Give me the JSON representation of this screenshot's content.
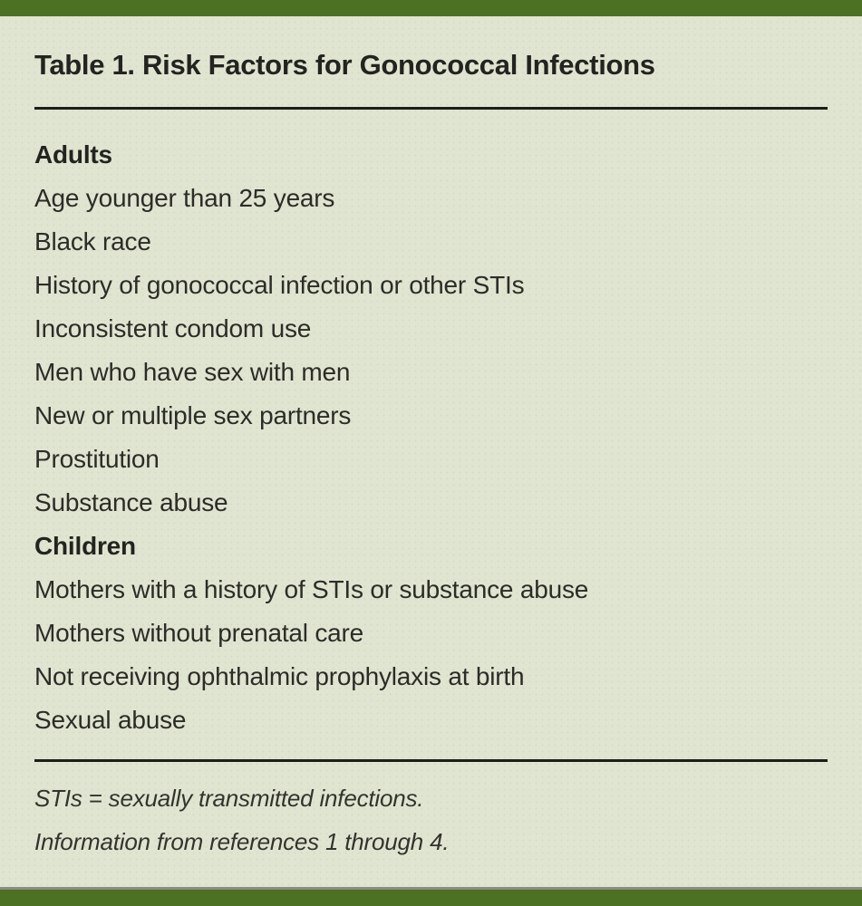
{
  "page": {
    "background_color": "#e0e5d2",
    "accent_color": "#4d7122",
    "shadow_line_color": "#8c8c85",
    "text_color": "#2c2c27"
  },
  "table": {
    "title": "Table 1. Risk Factors for Gonococcal Infections",
    "sections": [
      {
        "header": "Adults",
        "items": [
          "Age younger than 25 years",
          "Black race",
          "History of gonococcal infection or other STIs",
          "Inconsistent condom use",
          "Men who have sex with men",
          "New or multiple sex partners",
          "Prostitution",
          "Substance abuse"
        ]
      },
      {
        "header": "Children",
        "items": [
          "Mothers with a history of STIs or substance abuse",
          "Mothers without prenatal care",
          "Not receiving ophthalmic prophylaxis at birth",
          "Sexual abuse"
        ]
      }
    ],
    "footnotes": [
      "STIs = sexually transmitted infections.",
      "Information from references 1 through 4."
    ]
  }
}
